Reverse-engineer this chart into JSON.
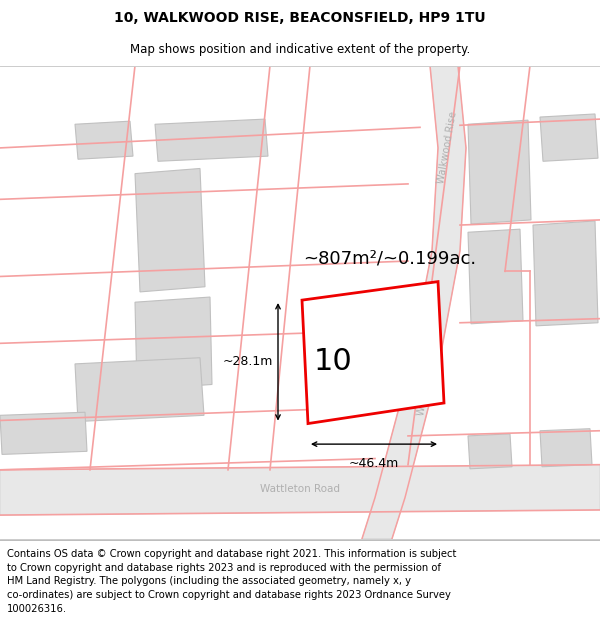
{
  "title_line1": "10, WALKWOOD RISE, BEACONSFIELD, HP9 1TU",
  "title_line2": "Map shows position and indicative extent of the property.",
  "footer_text": "Contains OS data © Crown copyright and database right 2021. This information is subject\nto Crown copyright and database rights 2023 and is reproduced with the permission of\nHM Land Registry. The polygons (including the associated geometry, namely x, y\nco-ordinates) are subject to Crown copyright and database rights 2023 Ordnance Survey\n100026316.",
  "area_label": "~807m²/~0.199ac.",
  "number_label": "10",
  "width_label": "~46.4m",
  "height_label": "~28.1m",
  "road_walkwood": "Walkwood Rise",
  "road_wattleton": "Wattleton Road",
  "map_bg": "#ffffff",
  "bld_fill": "#d8d8d8",
  "bld_edge": "#c0c0c0",
  "road_fill": "#e8e8e8",
  "road_edge": "#d0d0d0",
  "pink": "#f5a0a0",
  "red": "#ee0000",
  "title_fs": 10,
  "sub_fs": 8.5,
  "footer_fs": 7.2,
  "area_fs": 13,
  "num_fs": 22,
  "dim_fs": 9,
  "road_fs": 7
}
